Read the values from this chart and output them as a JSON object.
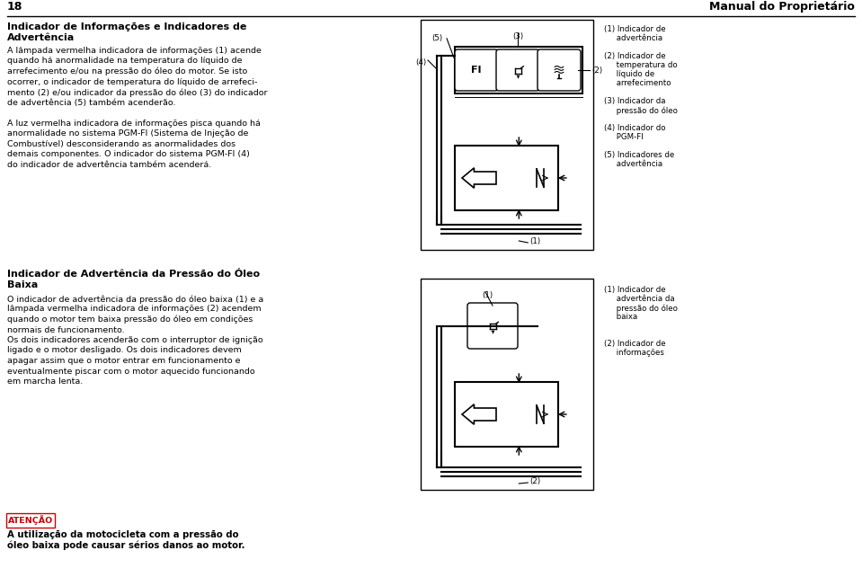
{
  "page_num": "18",
  "header_right": "Manual do Proprietário",
  "bg_color": "#ffffff",
  "section1_title_line1": "Indicador de Informações e Indicadores de",
  "section1_title_line2": "Advertência",
  "section1_body": [
    "A lâmpada vermelha indicadora de informações (1) acende",
    "quando há anormalidade na temperatura do líquido de",
    "arrefecimento e/ou na pressão do óleo do motor. Se isto",
    "ocorrer, o indicador de temperatura do líquido de arrefeci-",
    "mento (2) e/ou indicador da pressão do óleo (3) do indicador",
    "de advertência (5) também acenderão.",
    "",
    "A luz vermelha indicadora de informações pisca quando há",
    "anormalidade no sistema PGM-FI (Sistema de Injeção de",
    "Combustível) desconsiderando as anormalidades dos",
    "demais componentes. O indicador do sistema PGM-FI (4)",
    "do indicador de advertência também acenderá."
  ],
  "section2_title_line1": "Indicador de Advertência da Pressão do Óleo",
  "section2_title_line2": "Baixa",
  "section2_body": [
    "O indicador de advertência da pressão do óleo baixa (1) e a",
    "lâmpada vermelha indicadora de informações (2) acendem",
    "quando o motor tem baixa pressão do óleo em condições",
    "normais de funcionamento.",
    "Os dois indicadores acenderão com o interruptor de ignição",
    "ligado e o motor desligado. Os dois indicadores devem",
    "apagar assim que o motor entrar em funcionamento e",
    "eventualmente piscar com o motor aquecido funcionando",
    "em marcha lenta."
  ],
  "legend1": [
    [
      "(1)",
      "Indicador de",
      "advertência"
    ],
    [
      "(2)",
      "Indicador de",
      "temperatura do",
      "líquido de",
      "arrefecimento"
    ],
    [
      "(3)",
      "Indicador da",
      "pressão do óleo"
    ],
    [
      "(4)",
      "Indicador do",
      "PGM-FI"
    ],
    [
      "(5)",
      "Indicadores de",
      "advertência"
    ]
  ],
  "legend2": [
    [
      "(1)",
      "Indicador de",
      "advertência da",
      "pressão do óleo",
      "baixa"
    ],
    [
      "(2)",
      "Indicador de",
      "informações"
    ]
  ],
  "attention_label": "ATENÇÃO",
  "attention_text1": "A utilização da motocicleta com a pressão do",
  "attention_text2": "óleo baixa pode causar sérios danos ao motor."
}
